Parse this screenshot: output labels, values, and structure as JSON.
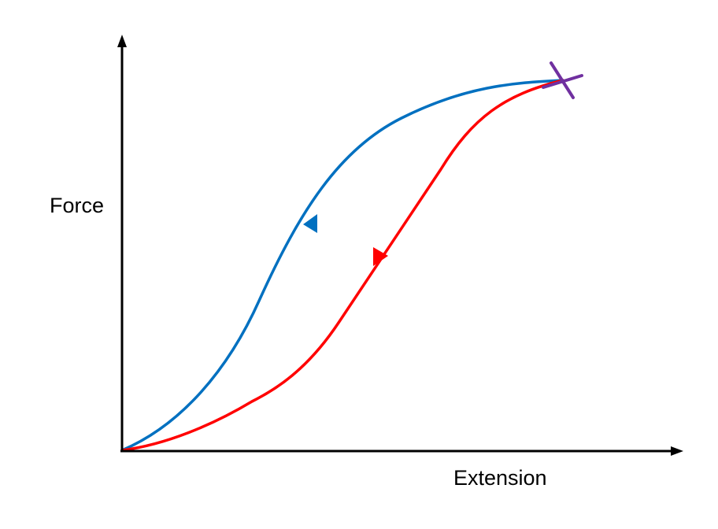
{
  "labels": {
    "y_axis": "Force",
    "x_axis": "Extension"
  },
  "colors": {
    "axis": "#000000",
    "loading_curve": "#0070c0",
    "unloading_curve": "#ff0000",
    "break_point": "#7030a0"
  }
}
